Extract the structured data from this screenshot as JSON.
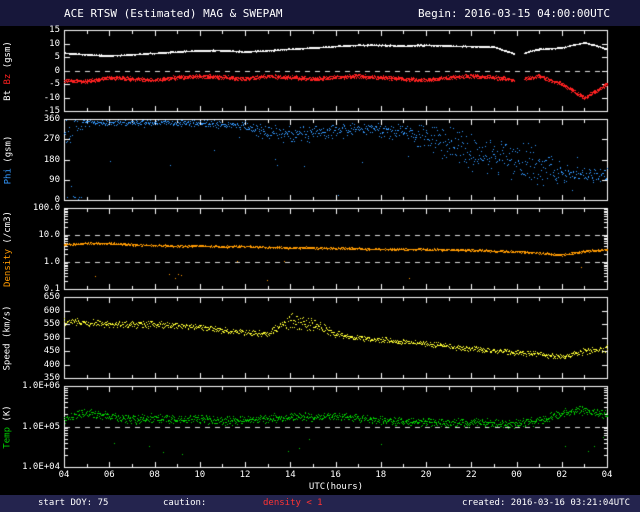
{
  "header": {
    "title": "ACE RTSW (Estimated) MAG & SWEPAM",
    "begin": "Begin: 2016-03-15 04:00:00UTC"
  },
  "footer": {
    "start_doy": "start DOY: 75",
    "caution_label": "caution:",
    "caution_value": "density < 1",
    "created": "created: 2016-03-16 03:21:04UTC"
  },
  "x_axis": {
    "label": "UTC(hours)",
    "tick_labels": [
      "04",
      "06",
      "08",
      "10",
      "12",
      "14",
      "16",
      "18",
      "20",
      "22",
      "00",
      "02",
      "04"
    ],
    "range_hours": [
      4,
      28
    ]
  },
  "colors": {
    "background": "#000000",
    "header_bar": "#17173a",
    "footer_bar": "#24244e",
    "frame": "#ffffff",
    "dashed": "#dddddd",
    "bt": "#ffffff",
    "bz": "#ff2020",
    "phi": "#3399ff",
    "density": "#ff9a00",
    "speed": "#ffff33",
    "temp": "#00d000",
    "caution": "#ff3333"
  },
  "chart_data": [
    {
      "type": "scatter",
      "id": "mag-bt-bz",
      "axis_label_parts": [
        {
          "text": "Bt ",
          "color": "#ffffff"
        },
        {
          "text": "Bz",
          "color": "#ff2020"
        },
        {
          "text": " (gsm)",
          "color": "#ffffff"
        }
      ],
      "yscale": "linear",
      "ylim": [
        -15,
        15
      ],
      "ytick_values": [
        15,
        10,
        5,
        0,
        -5,
        -10,
        -15
      ],
      "ytick_labels": [
        "15",
        "10",
        "5",
        "0",
        "-5",
        "-10",
        "-15"
      ],
      "dashed_at": [
        0
      ],
      "anchor_hours_note": "values sampled hourly from 04UTC to 28 (=04UTC next day)",
      "series": [
        {
          "name": "Bt",
          "color": "#ffffff",
          "points": 2500,
          "jitter": 0.3,
          "values": [
            6.5,
            6,
            5.5,
            6,
            6.5,
            7,
            7.5,
            7.5,
            7,
            7.5,
            8,
            8.5,
            9,
            9.5,
            9.5,
            9.2,
            9.5,
            9.2,
            9,
            8.8,
            6,
            8,
            8.5,
            10.5,
            8
          ],
          "gaps": [
            [
              23.9,
              24.35
            ]
          ]
        },
        {
          "name": "Bz",
          "color": "#ff2020",
          "points": 2500,
          "jitter": 0.9,
          "values": [
            -3.5,
            -4,
            -2.5,
            -3,
            -3.5,
            -2.5,
            -2,
            -2.5,
            -3,
            -2,
            -2.5,
            -3,
            -2.5,
            -2,
            -2.5,
            -3,
            -3.5,
            -2.5,
            -2,
            -2.5,
            -3.5,
            -2,
            -5,
            -10,
            -5
          ],
          "gaps": [
            [
              23.9,
              24.35
            ]
          ]
        }
      ]
    },
    {
      "type": "scatter",
      "id": "phi",
      "axis_label_parts": [
        {
          "text": "Phi",
          "color": "#3399ff"
        },
        {
          "text": " (gsm)",
          "color": "#ffffff"
        }
      ],
      "yscale": "linear",
      "ylim": [
        0,
        360
      ],
      "wrap": 360,
      "ytick_values": [
        360,
        270,
        180,
        90,
        0
      ],
      "ytick_labels": [
        "360",
        "270",
        "180",
        "90",
        "0"
      ],
      "dashed_at": [],
      "series": [
        {
          "name": "Phi",
          "color": "#3399ff",
          "points": 950,
          "jitter": [
            120,
            20,
            15,
            15,
            15,
            15,
            20,
            20,
            25,
            40,
            50,
            40,
            35,
            30,
            40,
            50,
            70,
            90,
            100,
            110,
            110,
            90,
            60,
            40,
            40
          ],
          "values": [
            340,
            345,
            345,
            345,
            345,
            345,
            340,
            335,
            330,
            300,
            290,
            300,
            310,
            320,
            310,
            300,
            280,
            250,
            220,
            200,
            180,
            150,
            120,
            110,
            115
          ],
          "outlier_rate": 0.02,
          "outlier_range": [
            5,
            355
          ]
        }
      ]
    },
    {
      "type": "scatter",
      "id": "density",
      "axis_label_parts": [
        {
          "text": "Density",
          "color": "#ff9a00"
        },
        {
          "text": " (/cm3)",
          "color": "#ffffff"
        }
      ],
      "yscale": "log",
      "ylim": [
        0.1,
        100
      ],
      "ytick_values": [
        100,
        10,
        1,
        0.1
      ],
      "ytick_labels": [
        "100.0",
        "10.0",
        "1.0",
        "0.1"
      ],
      "dashed_at": [
        10,
        1
      ],
      "series": [
        {
          "name": "Density",
          "color": "#ff9a00",
          "points": 1400,
          "jitter": 0.05,
          "values": [
            4.5,
            5,
            5,
            4.5,
            4.2,
            4,
            4,
            3.8,
            3.8,
            3.6,
            3.5,
            3.4,
            3.3,
            3.2,
            3,
            3,
            3,
            2.9,
            2.8,
            2.6,
            2.5,
            2.2,
            1.8,
            2.5,
            3
          ],
          "outlier_rate": 0.004,
          "outlier_range": [
            0.2,
            1.2
          ]
        }
      ]
    },
    {
      "type": "scatter",
      "id": "speed",
      "axis_label_parts": [
        {
          "text": "Speed",
          "color": "#ffffff"
        },
        {
          "text": " (km/s)",
          "color": "#ffffff"
        }
      ],
      "yscale": "linear",
      "ylim": [
        350,
        650
      ],
      "ytick_values": [
        650,
        600,
        550,
        500,
        450,
        400,
        350
      ],
      "ytick_labels": [
        "650",
        "600",
        "550",
        "500",
        "450",
        "400",
        "350"
      ],
      "dashed_at": [],
      "series": [
        {
          "name": "Speed",
          "color": "#ffff33",
          "points": 1100,
          "jitter": [
            15,
            15,
            15,
            15,
            15,
            15,
            12,
            12,
            12,
            12,
            35,
            30,
            15,
            12,
            12,
            12,
            12,
            12,
            12,
            12,
            12,
            12,
            12,
            15,
            15
          ],
          "values": [
            560,
            555,
            550,
            548,
            550,
            545,
            538,
            528,
            520,
            515,
            565,
            550,
            515,
            500,
            492,
            485,
            478,
            468,
            460,
            452,
            445,
            438,
            430,
            450,
            462
          ]
        }
      ]
    },
    {
      "type": "scatter",
      "id": "temp",
      "axis_label_parts": [
        {
          "text": "Temp",
          "color": "#00d000"
        },
        {
          "text": " (K)",
          "color": "#ffffff"
        }
      ],
      "yscale": "log",
      "ylim": [
        10000,
        1000000
      ],
      "ytick_values": [
        1000000,
        100000,
        10000
      ],
      "ytick_labels": [
        "1.0E+06",
        "1.0E+05",
        "1.0E+04"
      ],
      "dashed_at": [
        100000
      ],
      "series": [
        {
          "name": "Temp",
          "color": "#00d000",
          "points": 1300,
          "jitter": 0.13,
          "values": [
            160000,
            220000,
            180000,
            150000,
            170000,
            150000,
            160000,
            140000,
            150000,
            160000,
            180000,
            170000,
            190000,
            160000,
            150000,
            140000,
            130000,
            125000,
            130000,
            120000,
            115000,
            140000,
            220000,
            260000,
            190000
          ],
          "outlier_rate": 0.006,
          "outlier_range": [
            20000,
            70000
          ]
        }
      ]
    }
  ]
}
